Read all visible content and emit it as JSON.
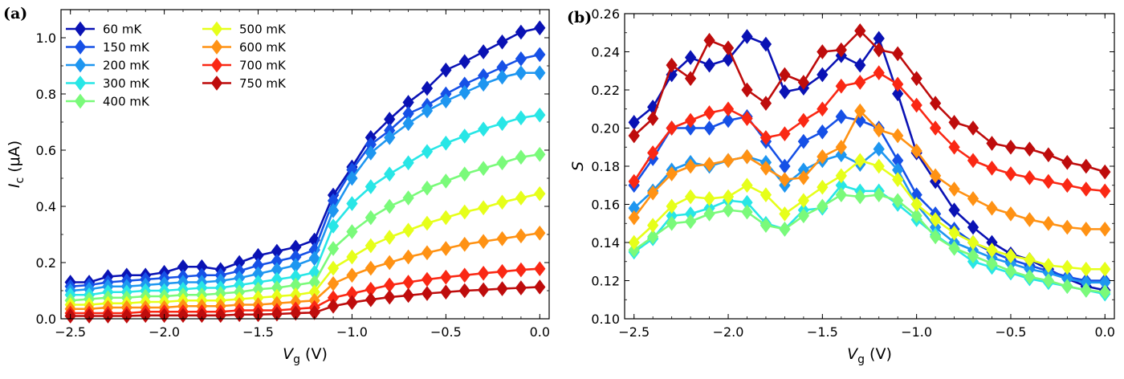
{
  "chart_data": [
    {
      "type": "line",
      "panel_label": "(a)",
      "xlabel_main": "V",
      "xlabel_sub": "g",
      "xlabel_unit": " (V)",
      "ylabel_main": "I",
      "ylabel_sub": "c",
      "ylabel_unit": " (μA)",
      "xlim": [
        -2.55,
        0.05
      ],
      "ylim": [
        0.0,
        1.1
      ],
      "xticks": [
        -2.5,
        -2.0,
        -1.5,
        -1.0,
        -0.5,
        0.0
      ],
      "xtick_labels": [
        "−2.5",
        "−2.0",
        "−1.5",
        "−1.0",
        "−0.5",
        "0.0"
      ],
      "yticks": [
        0.0,
        0.2,
        0.4,
        0.6,
        0.8,
        1.0
      ],
      "ytick_labels": [
        "0.0",
        "0.2",
        "0.4",
        "0.6",
        "0.8",
        "1.0"
      ],
      "legend": "top-left",
      "x": [
        -2.5,
        -2.4,
        -2.3,
        -2.2,
        -2.1,
        -2.0,
        -1.9,
        -1.8,
        -1.7,
        -1.6,
        -1.5,
        -1.4,
        -1.3,
        -1.2,
        -1.1,
        -1.0,
        -0.9,
        -0.8,
        -0.7,
        -0.6,
        -0.5,
        -0.4,
        -0.3,
        -0.2,
        -0.1,
        0.0
      ],
      "series": [
        {
          "name": "60 mK",
          "color": "#0a12b4",
          "values": [
            0.13,
            0.13,
            0.15,
            0.155,
            0.155,
            0.165,
            0.185,
            0.185,
            0.175,
            0.2,
            0.225,
            0.24,
            0.255,
            0.28,
            0.44,
            0.54,
            0.645,
            0.71,
            0.77,
            0.82,
            0.885,
            0.915,
            0.95,
            0.985,
            1.02,
            1.035
          ]
        },
        {
          "name": "150 mK",
          "color": "#1650e6",
          "values": [
            0.115,
            0.12,
            0.13,
            0.135,
            0.14,
            0.145,
            0.15,
            0.155,
            0.155,
            0.17,
            0.19,
            0.205,
            0.22,
            0.245,
            0.42,
            0.53,
            0.62,
            0.67,
            0.73,
            0.76,
            0.8,
            0.835,
            0.865,
            0.895,
            0.925,
            0.94
          ]
        },
        {
          "name": "200 mK",
          "color": "#1e96f0",
          "values": [
            0.1,
            0.105,
            0.115,
            0.115,
            0.12,
            0.125,
            0.13,
            0.13,
            0.135,
            0.145,
            0.16,
            0.175,
            0.19,
            0.215,
            0.385,
            0.5,
            0.59,
            0.645,
            0.695,
            0.74,
            0.775,
            0.805,
            0.835,
            0.86,
            0.875,
            0.875
          ]
        },
        {
          "name": "300 mK",
          "color": "#28e6e6",
          "values": [
            0.085,
            0.085,
            0.095,
            0.095,
            0.1,
            0.1,
            0.105,
            0.11,
            0.11,
            0.12,
            0.13,
            0.14,
            0.15,
            0.165,
            0.33,
            0.41,
            0.47,
            0.515,
            0.555,
            0.595,
            0.625,
            0.65,
            0.675,
            0.695,
            0.715,
            0.725
          ]
        },
        {
          "name": "400 mK",
          "color": "#7afa7a",
          "values": [
            0.065,
            0.07,
            0.075,
            0.075,
            0.08,
            0.08,
            0.085,
            0.085,
            0.09,
            0.095,
            0.105,
            0.11,
            0.12,
            0.13,
            0.25,
            0.31,
            0.36,
            0.4,
            0.43,
            0.465,
            0.49,
            0.515,
            0.535,
            0.555,
            0.575,
            0.585
          ]
        },
        {
          "name": "500 mK",
          "color": "#e6ff1a",
          "values": [
            0.05,
            0.05,
            0.055,
            0.055,
            0.06,
            0.06,
            0.065,
            0.065,
            0.065,
            0.07,
            0.075,
            0.08,
            0.085,
            0.095,
            0.18,
            0.22,
            0.26,
            0.29,
            0.315,
            0.34,
            0.36,
            0.38,
            0.395,
            0.415,
            0.43,
            0.445
          ]
        },
        {
          "name": "600 mK",
          "color": "#ff9214",
          "values": [
            0.035,
            0.035,
            0.04,
            0.04,
            0.04,
            0.04,
            0.045,
            0.045,
            0.045,
            0.05,
            0.05,
            0.055,
            0.06,
            0.065,
            0.125,
            0.155,
            0.18,
            0.2,
            0.22,
            0.235,
            0.25,
            0.265,
            0.275,
            0.285,
            0.295,
            0.305
          ]
        },
        {
          "name": "700 mK",
          "color": "#fa2814",
          "values": [
            0.02,
            0.02,
            0.02,
            0.02,
            0.025,
            0.025,
            0.025,
            0.025,
            0.025,
            0.03,
            0.03,
            0.03,
            0.035,
            0.04,
            0.075,
            0.09,
            0.105,
            0.12,
            0.13,
            0.14,
            0.148,
            0.155,
            0.162,
            0.168,
            0.174,
            0.178
          ]
        },
        {
          "name": "750 mK",
          "color": "#be0c0c",
          "values": [
            0.01,
            0.01,
            0.01,
            0.01,
            0.012,
            0.012,
            0.012,
            0.012,
            0.012,
            0.015,
            0.015,
            0.017,
            0.02,
            0.022,
            0.045,
            0.058,
            0.068,
            0.077,
            0.083,
            0.09,
            0.095,
            0.1,
            0.103,
            0.107,
            0.11,
            0.113
          ]
        }
      ]
    },
    {
      "type": "line",
      "panel_label": "(b)",
      "xlabel_main": "V",
      "xlabel_sub": "g",
      "xlabel_unit": " (V)",
      "ylabel_main": "S",
      "ylabel_sub": "",
      "ylabel_unit": "",
      "xlim": [
        -2.55,
        0.05
      ],
      "ylim": [
        0.1,
        0.26
      ],
      "xticks": [
        -2.5,
        -2.0,
        -1.5,
        -1.0,
        -0.5,
        0.0
      ],
      "xtick_labels": [
        "−2.5",
        "−2.0",
        "−1.5",
        "−1.0",
        "−0.5",
        "0.0"
      ],
      "yticks": [
        0.1,
        0.12,
        0.14,
        0.16,
        0.18,
        0.2,
        0.22,
        0.24,
        0.26
      ],
      "ytick_labels": [
        "0.10",
        "0.12",
        "0.14",
        "0.16",
        "0.18",
        "0.20",
        "0.22",
        "0.24",
        "0.26"
      ],
      "legend": "none",
      "x": [
        -2.5,
        -2.4,
        -2.3,
        -2.2,
        -2.1,
        -2.0,
        -1.9,
        -1.8,
        -1.7,
        -1.6,
        -1.5,
        -1.4,
        -1.3,
        -1.2,
        -1.1,
        -1.0,
        -0.9,
        -0.8,
        -0.7,
        -0.6,
        -0.5,
        -0.4,
        -0.3,
        -0.2,
        -0.1,
        0.0
      ],
      "series": [
        {
          "name": "60 mK",
          "color": "#0a12b4",
          "values": [
            0.203,
            0.211,
            0.228,
            0.237,
            0.233,
            0.236,
            0.248,
            0.244,
            0.219,
            0.221,
            0.228,
            0.238,
            0.233,
            0.247,
            0.218,
            0.187,
            0.172,
            0.157,
            0.148,
            0.14,
            0.134,
            0.131,
            0.126,
            0.121,
            0.117,
            0.115
          ]
        },
        {
          "name": "150 mK",
          "color": "#1650e6",
          "values": [
            0.17,
            0.184,
            0.2,
            0.2,
            0.2,
            0.204,
            0.206,
            0.193,
            0.18,
            0.193,
            0.198,
            0.206,
            0.204,
            0.2,
            0.183,
            0.165,
            0.155,
            0.147,
            0.14,
            0.135,
            0.131,
            0.128,
            0.125,
            0.122,
            0.12,
            0.12
          ]
        },
        {
          "name": "200 mK",
          "color": "#1e96f0",
          "values": [
            0.158,
            0.167,
            0.178,
            0.182,
            0.18,
            0.183,
            0.185,
            0.182,
            0.17,
            0.178,
            0.183,
            0.186,
            0.181,
            0.189,
            0.178,
            0.16,
            0.148,
            0.14,
            0.136,
            0.132,
            0.129,
            0.126,
            0.124,
            0.121,
            0.119,
            0.119
          ]
        },
        {
          "name": "300 mK",
          "color": "#28e6e6",
          "values": [
            0.135,
            0.142,
            0.154,
            0.155,
            0.158,
            0.162,
            0.161,
            0.15,
            0.147,
            0.157,
            0.158,
            0.17,
            0.167,
            0.167,
            0.16,
            0.152,
            0.144,
            0.137,
            0.13,
            0.127,
            0.124,
            0.121,
            0.119,
            0.117,
            0.115,
            0.113
          ]
        },
        {
          "name": "400 mK",
          "color": "#7afa7a",
          "values": [
            0.136,
            0.143,
            0.15,
            0.151,
            0.155,
            0.157,
            0.156,
            0.149,
            0.147,
            0.154,
            0.159,
            0.165,
            0.164,
            0.165,
            0.162,
            0.154,
            0.143,
            0.137,
            0.133,
            0.129,
            0.125,
            0.122,
            0.12,
            0.117,
            0.115,
            0.114
          ]
        },
        {
          "name": "500 mK",
          "color": "#e6ff1a",
          "values": [
            0.14,
            0.149,
            0.159,
            0.164,
            0.163,
            0.164,
            0.17,
            0.165,
            0.155,
            0.162,
            0.169,
            0.175,
            0.183,
            0.18,
            0.173,
            0.16,
            0.152,
            0.145,
            0.14,
            0.136,
            0.133,
            0.131,
            0.128,
            0.127,
            0.126,
            0.126
          ]
        },
        {
          "name": "600 mK",
          "color": "#ff9214",
          "values": [
            0.153,
            0.166,
            0.176,
            0.18,
            0.181,
            0.183,
            0.185,
            0.179,
            0.173,
            0.174,
            0.185,
            0.19,
            0.209,
            0.199,
            0.196,
            0.188,
            0.175,
            0.168,
            0.163,
            0.158,
            0.155,
            0.152,
            0.15,
            0.148,
            0.147,
            0.147
          ]
        },
        {
          "name": "700 mK",
          "color": "#fa2814",
          "values": [
            0.172,
            0.187,
            0.2,
            0.204,
            0.208,
            0.21,
            0.205,
            0.195,
            0.197,
            0.204,
            0.21,
            0.222,
            0.224,
            0.229,
            0.223,
            0.212,
            0.2,
            0.19,
            0.183,
            0.179,
            0.176,
            0.174,
            0.172,
            0.17,
            0.168,
            0.167
          ]
        },
        {
          "name": "750 mK",
          "color": "#be0c0c",
          "values": [
            0.196,
            0.205,
            0.233,
            0.226,
            0.246,
            0.242,
            0.22,
            0.213,
            0.228,
            0.224,
            0.24,
            0.241,
            0.251,
            0.241,
            0.239,
            0.226,
            0.213,
            0.203,
            0.2,
            0.192,
            0.19,
            0.189,
            0.186,
            0.182,
            0.18,
            0.177
          ]
        }
      ]
    }
  ]
}
